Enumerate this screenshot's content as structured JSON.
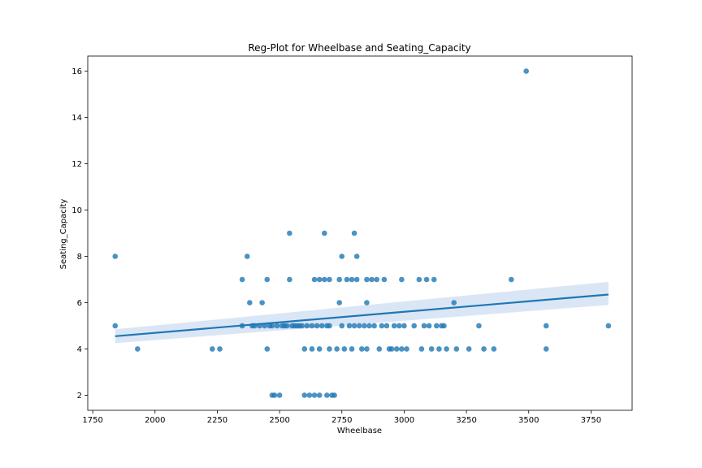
{
  "chart_data": {
    "type": "scatter",
    "title": "Reg-Plot for Wheelbase and Seating_Capacity",
    "xlabel": "Wheelbase",
    "ylabel": "Seating_Capacity",
    "xlim": [
      1730,
      3915
    ],
    "ylim": [
      1.35,
      16.65
    ],
    "xticks": [
      1750,
      2000,
      2250,
      2500,
      2750,
      3000,
      3250,
      3500,
      3750
    ],
    "yticks": [
      2,
      4,
      6,
      8,
      10,
      12,
      14,
      16
    ],
    "grid": false,
    "legend": "none",
    "colors": {
      "points": "#1f77b4",
      "line": "#1f77b4",
      "band": "#aec7e8"
    },
    "regression": {
      "x": [
        1840,
        3820
      ],
      "y": [
        4.55,
        6.35
      ],
      "ci_lower": [
        4.25,
        5.9
      ],
      "ci_upper": [
        4.85,
        6.9
      ]
    },
    "series": [
      {
        "points": [
          [
            1840,
            8
          ],
          [
            1840,
            5
          ],
          [
            1930,
            4
          ],
          [
            2230,
            4
          ],
          [
            2260,
            4
          ],
          [
            2350,
            7
          ],
          [
            2350,
            5
          ],
          [
            2370,
            8
          ],
          [
            2380,
            6
          ],
          [
            2390,
            5
          ],
          [
            2400,
            5
          ],
          [
            2420,
            5
          ],
          [
            2430,
            6
          ],
          [
            2440,
            5
          ],
          [
            2450,
            7
          ],
          [
            2450,
            4
          ],
          [
            2460,
            5
          ],
          [
            2470,
            5
          ],
          [
            2470,
            2
          ],
          [
            2480,
            2
          ],
          [
            2490,
            5
          ],
          [
            2500,
            2
          ],
          [
            2510,
            5
          ],
          [
            2520,
            5
          ],
          [
            2530,
            5
          ],
          [
            2540,
            9
          ],
          [
            2540,
            7
          ],
          [
            2550,
            5
          ],
          [
            2560,
            5
          ],
          [
            2570,
            5
          ],
          [
            2580,
            5
          ],
          [
            2590,
            5
          ],
          [
            2600,
            4
          ],
          [
            2600,
            2
          ],
          [
            2610,
            5
          ],
          [
            2620,
            2
          ],
          [
            2630,
            4
          ],
          [
            2630,
            5
          ],
          [
            2640,
            7
          ],
          [
            2640,
            2
          ],
          [
            2650,
            5
          ],
          [
            2660,
            7
          ],
          [
            2660,
            4
          ],
          [
            2660,
            2
          ],
          [
            2670,
            5
          ],
          [
            2680,
            9
          ],
          [
            2680,
            7
          ],
          [
            2690,
            2
          ],
          [
            2690,
            5
          ],
          [
            2700,
            7
          ],
          [
            2700,
            4
          ],
          [
            2700,
            5
          ],
          [
            2710,
            2
          ],
          [
            2720,
            2
          ],
          [
            2730,
            4
          ],
          [
            2740,
            7
          ],
          [
            2740,
            6
          ],
          [
            2750,
            8
          ],
          [
            2750,
            5
          ],
          [
            2760,
            4
          ],
          [
            2770,
            7
          ],
          [
            2780,
            5
          ],
          [
            2790,
            4
          ],
          [
            2790,
            7
          ],
          [
            2800,
            9
          ],
          [
            2800,
            5
          ],
          [
            2810,
            8
          ],
          [
            2810,
            7
          ],
          [
            2820,
            5
          ],
          [
            2830,
            4
          ],
          [
            2840,
            5
          ],
          [
            2850,
            7
          ],
          [
            2850,
            6
          ],
          [
            2850,
            4
          ],
          [
            2860,
            5
          ],
          [
            2870,
            7
          ],
          [
            2880,
            5
          ],
          [
            2890,
            7
          ],
          [
            2900,
            4
          ],
          [
            2910,
            5
          ],
          [
            2920,
            7
          ],
          [
            2930,
            5
          ],
          [
            2940,
            4
          ],
          [
            2950,
            4
          ],
          [
            2960,
            5
          ],
          [
            2970,
            4
          ],
          [
            2980,
            5
          ],
          [
            2990,
            7
          ],
          [
            2990,
            4
          ],
          [
            3000,
            5
          ],
          [
            3010,
            4
          ],
          [
            3040,
            5
          ],
          [
            3060,
            7
          ],
          [
            3070,
            4
          ],
          [
            3080,
            5
          ],
          [
            3090,
            7
          ],
          [
            3100,
            5
          ],
          [
            3110,
            4
          ],
          [
            3120,
            7
          ],
          [
            3130,
            5
          ],
          [
            3140,
            4
          ],
          [
            3150,
            5
          ],
          [
            3160,
            5
          ],
          [
            3170,
            4
          ],
          [
            3200,
            6
          ],
          [
            3210,
            4
          ],
          [
            3260,
            4
          ],
          [
            3300,
            5
          ],
          [
            3320,
            4
          ],
          [
            3360,
            4
          ],
          [
            3430,
            7
          ],
          [
            3490,
            16
          ],
          [
            3570,
            5
          ],
          [
            3570,
            4
          ],
          [
            3820,
            5
          ]
        ]
      }
    ]
  }
}
